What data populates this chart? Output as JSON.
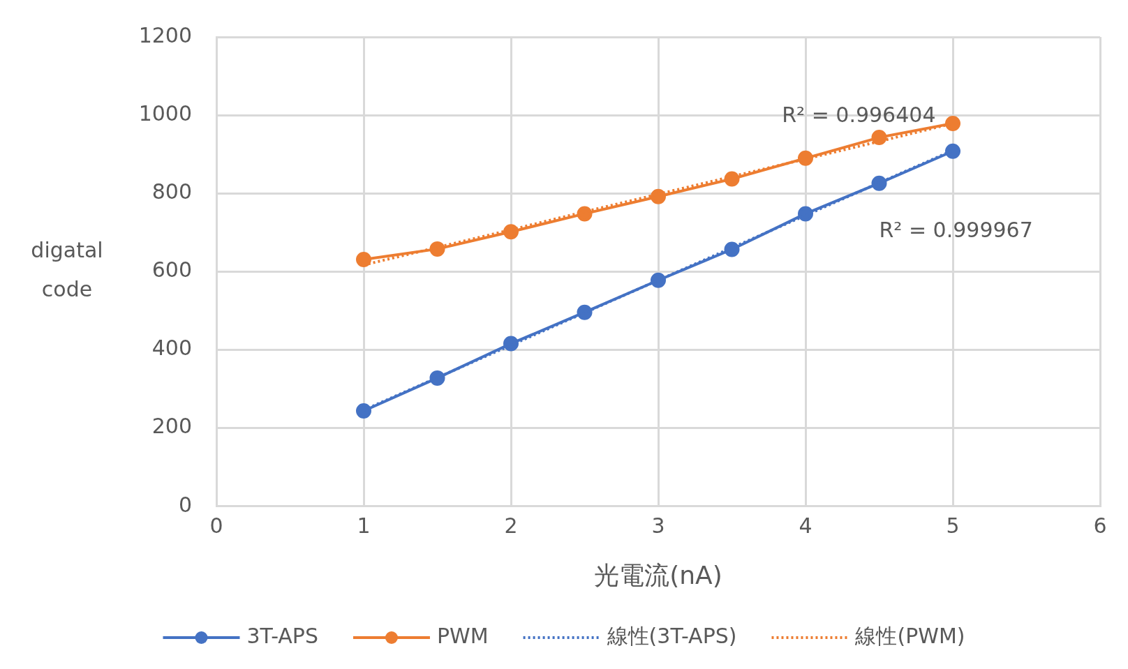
{
  "chart_data": {
    "type": "line",
    "xlabel": "光電流(nA)",
    "ylabel": "digatal code",
    "x": [
      1,
      1.5,
      2,
      2.5,
      3,
      3.5,
      4,
      4.5,
      5
    ],
    "series": [
      {
        "name": "3T-APS",
        "color": "#4472c4",
        "values": [
          244,
          328,
          416,
          496,
          578,
          657,
          748,
          826,
          908
        ],
        "marker": "circle"
      },
      {
        "name": "PWM",
        "color": "#ed7d31",
        "values": [
          631,
          658,
          702,
          748,
          792,
          837,
          890,
          943,
          979
        ],
        "marker": "circle"
      },
      {
        "name": "線性(3T-APS)",
        "color": "#4472c4",
        "type": "line",
        "values": [
          246,
          329,
          412,
          495,
          578,
          661,
          744,
          827,
          910
        ],
        "marker": "none",
        "line_style": "dotted"
      },
      {
        "name": "線性(PWM)",
        "color": "#ed7d31",
        "type": "line",
        "values": [
          617,
          662,
          707,
          753,
          798,
          843,
          888,
          933,
          979
        ],
        "marker": "none",
        "line_style": "dotted"
      }
    ],
    "annotations": [
      "R² = 0.996404",
      "R² = 0.999967"
    ],
    "xlim": [
      0,
      6
    ],
    "xticks": [
      0,
      1,
      2,
      3,
      4,
      5,
      6
    ],
    "ylim": [
      0,
      1200
    ],
    "yticks": [
      0,
      200,
      400,
      600,
      800,
      1000,
      1200
    ],
    "grid": true,
    "legend": "bottom"
  }
}
